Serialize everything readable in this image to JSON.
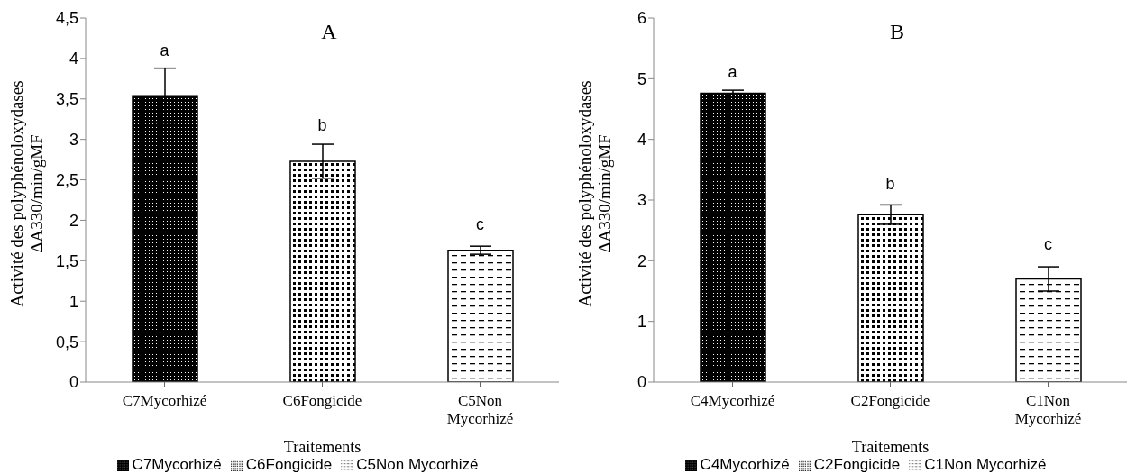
{
  "chart_data": [
    {
      "type": "bar",
      "title": "A",
      "xlabel": "Traitements",
      "ylabel": "Activité des polyphénoloxydases\nΔA330/min/gMF",
      "categories": [
        "C7Mycorhizé",
        "C6Fongicide",
        "C5Non Mycorhizé"
      ],
      "series": [
        {
          "name": "C7Mycorhizé",
          "color": "#000000",
          "values": [
            3.54,
            null,
            null
          ],
          "errors": [
            0.34,
            null,
            null
          ]
        },
        {
          "name": "C6Fongicide",
          "color": "#000000",
          "values": [
            null,
            2.73,
            null
          ],
          "errors": [
            null,
            0.21,
            null
          ]
        },
        {
          "name": "C5Non Mycorhizé",
          "color": "#000000",
          "values": [
            null,
            null,
            1.63
          ],
          "errors": [
            null,
            null,
            0.05
          ]
        }
      ],
      "ylim": [
        0,
        4.5
      ],
      "yticks": [
        0,
        {
          "value": 0.5,
          "label": "0,5"
        },
        1,
        {
          "value": 1.5,
          "label": "1,5"
        },
        2,
        {
          "value": 2.5,
          "label": "2,5"
        },
        3,
        {
          "value": 3.5,
          "label": "3,5"
        },
        4,
        {
          "value": 4.5,
          "label": "4,5"
        }
      ],
      "legend": "bottom",
      "annotations": [
        "a",
        "b",
        "c"
      ]
    },
    {
      "type": "bar",
      "title": "B",
      "xlabel": "Traitements",
      "ylabel": "Activité des polyphénoloxydases\nΔA330/min/gMF",
      "categories": [
        "C4Mycorhizé",
        "C2Fongicide",
        "C1Non Mycorhizé"
      ],
      "series": [
        {
          "name": "C4Mycorhizé",
          "color": "#000000",
          "values": [
            4.76,
            null,
            null
          ],
          "errors": [
            0.05,
            null,
            null
          ]
        },
        {
          "name": "C2Fongicide",
          "color": "#000000",
          "values": [
            null,
            2.76,
            null
          ],
          "errors": [
            null,
            0.16,
            null
          ]
        },
        {
          "name": "C1Non Mycorhizé",
          "color": "#000000",
          "values": [
            null,
            null,
            1.7
          ],
          "errors": [
            null,
            null,
            0.2
          ]
        }
      ],
      "ylim": [
        0,
        6
      ],
      "yticks": [
        0,
        1,
        2,
        3,
        4,
        5,
        6
      ],
      "legend": "bottom",
      "annotations": [
        "a",
        "b",
        "c"
      ]
    }
  ]
}
